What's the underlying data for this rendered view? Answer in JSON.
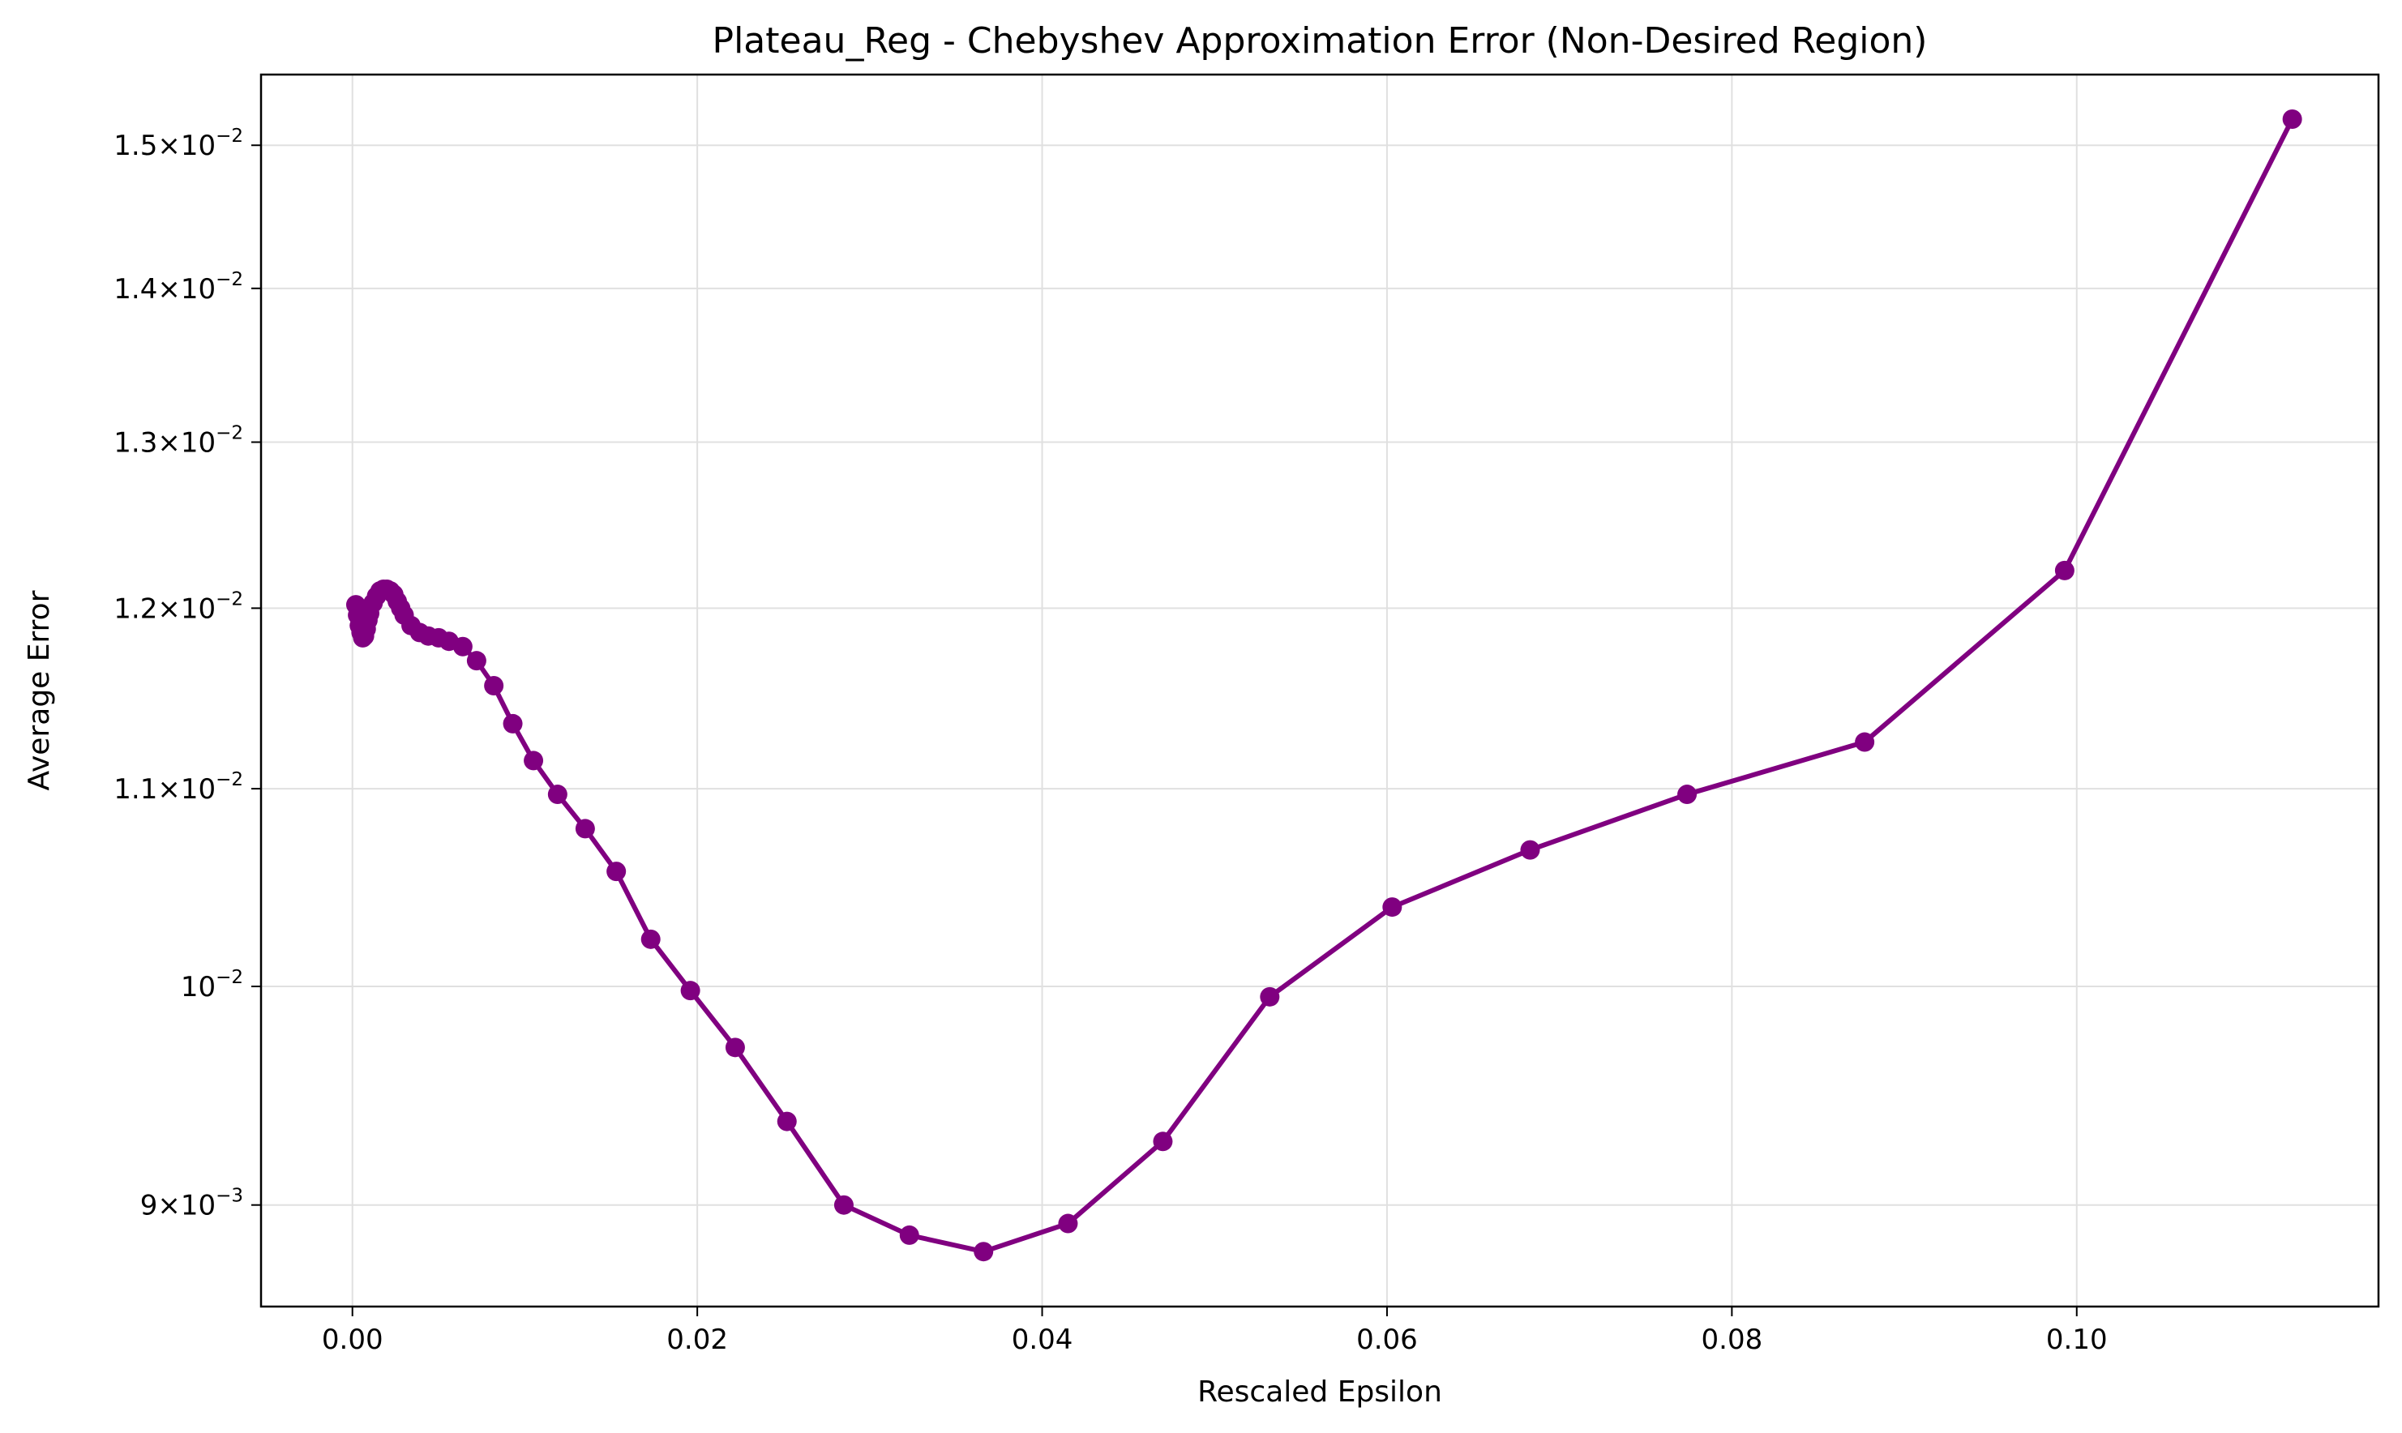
{
  "chart_data": {
    "type": "line",
    "title": "Plateau_Reg - Chebyshev Approximation Error (Non-Desired Region)",
    "xlabel": "Rescaled Epsilon",
    "ylabel": "Average Error",
    "xlim": [
      -0.0053,
      0.1175
    ],
    "ylim": [
      0.00857,
      0.01552
    ],
    "yscale": "log",
    "grid": true,
    "color": "#800080",
    "marker": "circle",
    "x_ticks": [
      {
        "value": 0.0,
        "label": "0.00"
      },
      {
        "value": 0.02,
        "label": "0.02"
      },
      {
        "value": 0.04,
        "label": "0.04"
      },
      {
        "value": 0.06,
        "label": "0.06"
      },
      {
        "value": 0.08,
        "label": "0.08"
      },
      {
        "value": 0.1,
        "label": "0.10"
      }
    ],
    "y_ticks": [
      {
        "value": 0.009,
        "mantissa": "9",
        "exp": "−3"
      },
      {
        "value": 0.01,
        "mantissa": "",
        "exp": "−2"
      },
      {
        "value": 0.011,
        "mantissa": "1.1",
        "exp": "−2"
      },
      {
        "value": 0.012,
        "mantissa": "1.2",
        "exp": "−2"
      },
      {
        "value": 0.013,
        "mantissa": "1.3",
        "exp": "−2"
      },
      {
        "value": 0.014,
        "mantissa": "1.4",
        "exp": "−2"
      },
      {
        "value": 0.015,
        "mantissa": "1.5",
        "exp": "−2"
      }
    ],
    "series": [
      {
        "x": [
          0.0002,
          0.0003,
          0.0004,
          0.0005,
          0.0006,
          0.0007,
          0.0008,
          0.0009,
          0.001,
          0.0012,
          0.0014,
          0.0016,
          0.0018,
          0.002,
          0.0022,
          0.0024,
          0.0026,
          0.0028,
          0.003,
          0.0034,
          0.0039,
          0.0044,
          0.005,
          0.0056,
          0.0064,
          0.0072,
          0.0082,
          0.0093,
          0.0105,
          0.0119,
          0.0135,
          0.0153,
          0.0173,
          0.0196,
          0.0222,
          0.0252,
          0.0285,
          0.0323,
          0.0366,
          0.0415,
          0.047,
          0.0532,
          0.0603,
          0.0683,
          0.0774,
          0.0877,
          0.0993,
          0.1125
        ],
        "y": [
          0.01202,
          0.01196,
          0.0119,
          0.01186,
          0.01183,
          0.01184,
          0.01188,
          0.01193,
          0.01197,
          0.01203,
          0.01207,
          0.0121,
          0.01211,
          0.01211,
          0.0121,
          0.01208,
          0.01204,
          0.012,
          0.01196,
          0.0119,
          0.01186,
          0.01184,
          0.01183,
          0.01181,
          0.01178,
          0.0117,
          0.01156,
          0.01135,
          0.01115,
          0.01097,
          0.01079,
          0.01057,
          0.01023,
          0.00998,
          0.00971,
          0.00937,
          0.009,
          0.00887,
          0.0088,
          0.00892,
          0.00928,
          0.00995,
          0.01039,
          0.01068,
          0.01097,
          0.01125,
          0.01222,
          0.01519
        ]
      }
    ]
  }
}
